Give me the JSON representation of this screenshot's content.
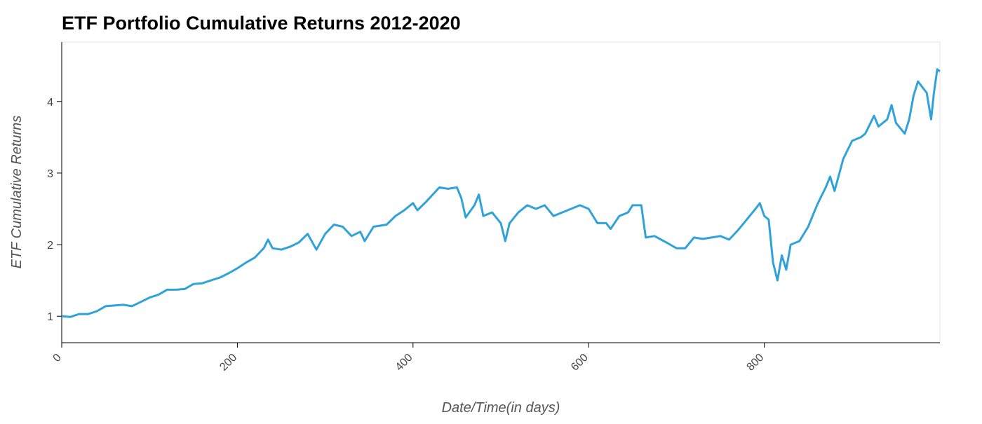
{
  "chart_data": {
    "type": "line",
    "title": "ETF Portfolio Cumulative Returns 2012-2020",
    "x_label": "Date/Time(in days)",
    "y_label": "ETF Cumulative Returns",
    "color": "#30a2da",
    "x": [
      0,
      10,
      20,
      30,
      40,
      50,
      60,
      70,
      80,
      90,
      100,
      110,
      120,
      130,
      140,
      150,
      160,
      170,
      180,
      190,
      200,
      210,
      220,
      230,
      235,
      240,
      250,
      260,
      270,
      280,
      290,
      300,
      310,
      320,
      330,
      340,
      345,
      355,
      370,
      380,
      390,
      400,
      405,
      415,
      430,
      440,
      450,
      455,
      460,
      470,
      475,
      480,
      490,
      500,
      505,
      510,
      520,
      530,
      540,
      550,
      560,
      570,
      580,
      590,
      600,
      610,
      620,
      625,
      635,
      645,
      650,
      660,
      665,
      675,
      690,
      700,
      710,
      720,
      730,
      740,
      750,
      760,
      770,
      780,
      790,
      795,
      800,
      805,
      810,
      815,
      820,
      825,
      830,
      840,
      850,
      860,
      870,
      875,
      880,
      890,
      900,
      910,
      915,
      925,
      930,
      940,
      945,
      950,
      960,
      965,
      970,
      975,
      985,
      990,
      993,
      997,
      1000
    ],
    "values": [
      1.0,
      0.99,
      1.03,
      1.03,
      1.07,
      1.14,
      1.15,
      1.16,
      1.14,
      1.2,
      1.26,
      1.3,
      1.37,
      1.37,
      1.38,
      1.45,
      1.46,
      1.5,
      1.54,
      1.6,
      1.67,
      1.75,
      1.82,
      1.95,
      2.07,
      1.95,
      1.93,
      1.97,
      2.03,
      2.15,
      1.93,
      2.15,
      2.28,
      2.25,
      2.12,
      2.18,
      2.05,
      2.25,
      2.28,
      2.4,
      2.48,
      2.58,
      2.48,
      2.6,
      2.8,
      2.78,
      2.8,
      2.65,
      2.38,
      2.55,
      2.7,
      2.4,
      2.45,
      2.3,
      2.05,
      2.3,
      2.45,
      2.55,
      2.5,
      2.55,
      2.4,
      2.45,
      2.5,
      2.55,
      2.5,
      2.3,
      2.3,
      2.22,
      2.4,
      2.45,
      2.55,
      2.55,
      2.1,
      2.12,
      2.02,
      1.95,
      1.95,
      2.1,
      2.08,
      2.1,
      2.12,
      2.07,
      2.2,
      2.35,
      2.5,
      2.58,
      2.4,
      2.35,
      1.75,
      1.5,
      1.85,
      1.65,
      2.0,
      2.05,
      2.25,
      2.55,
      2.8,
      2.95,
      2.75,
      3.2,
      3.45,
      3.5,
      3.55,
      3.8,
      3.65,
      3.75,
      3.95,
      3.7,
      3.55,
      3.75,
      4.08,
      4.28,
      4.12,
      3.75,
      4.1,
      4.45,
      4.42
    ],
    "xlim": [
      0,
      1000
    ],
    "ylim": [
      0.63,
      4.83
    ],
    "xticks": [
      0,
      200,
      400,
      600,
      800
    ],
    "yticks": [
      1,
      2,
      3,
      4
    ]
  }
}
